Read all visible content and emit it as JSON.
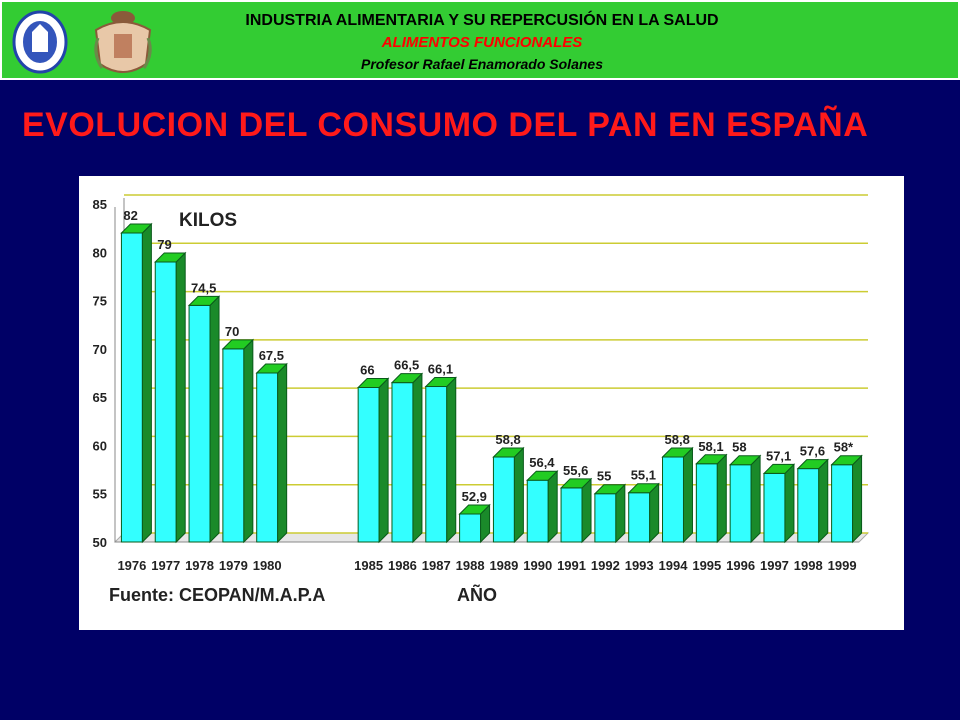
{
  "header": {
    "line1": "INDUSTRIA ALIMENTARIA Y SU REPERCUSIÓN EN LA SALUD",
    "line2": "ALIMENTOS FUNCIONALES",
    "line3": "Profesor Rafael Enamorado Solanes",
    "background_color": "#33cc33"
  },
  "slide": {
    "title": "EVOLUCION DEL CONSUMO DEL PAN EN ESPAÑA",
    "background_color": "#000066",
    "title_color": "#ff1a1a"
  },
  "chart_data": {
    "type": "bar",
    "title": "",
    "unit_label": "KILOS",
    "xlabel": "AÑO",
    "ylabel": "",
    "source": "Fuente: CEOPAN/M.A.P.A",
    "ylim": [
      50,
      85
    ],
    "yticks": [
      50,
      55,
      60,
      65,
      70,
      75,
      80,
      85
    ],
    "grid": true,
    "bar_color": "#33ffff",
    "bar_side_color": "#1a8a2a",
    "bar_top_color": "#22cc22",
    "gridline_color": "#cccc33",
    "categories": [
      "1976",
      "1977",
      "1978",
      "1979",
      "1980",
      "1985",
      "1986",
      "1987",
      "1988",
      "1989",
      "1990",
      "1991",
      "1992",
      "1993",
      "1994",
      "1995",
      "1996",
      "1997",
      "1998",
      "1999"
    ],
    "values": [
      82,
      79,
      74.5,
      70,
      67.5,
      66,
      66.5,
      66.1,
      52.9,
      58.8,
      56.4,
      55.6,
      55,
      55.1,
      58.8,
      58.1,
      58,
      57.1,
      57.6,
      58
    ],
    "data_labels": [
      "82",
      "79",
      "74,5",
      "70",
      "67,5",
      "66",
      "66,5",
      "66,1",
      "52,9",
      "58,8",
      "56,4",
      "55,6",
      "55",
      "55,1",
      "58,8",
      "58,1",
      "58",
      "57,1",
      "57,6",
      "58*"
    ]
  }
}
